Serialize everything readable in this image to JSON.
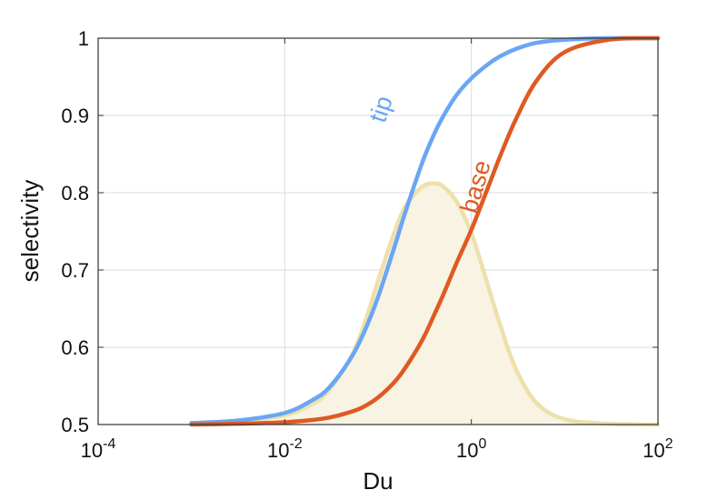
{
  "chart_data": {
    "type": "line",
    "xscale": "log",
    "xlabel": "Du",
    "ylabel": "selectivity",
    "xlim": [
      0.0001,
      100
    ],
    "ylim": [
      0.5,
      1
    ],
    "grid": true,
    "x_ticks": [
      {
        "base": "10",
        "exp": "-4"
      },
      {
        "base": "10",
        "exp": "-2"
      },
      {
        "base": "10",
        "exp": "0"
      },
      {
        "base": "10",
        "exp": "2"
      }
    ],
    "y_ticks": [
      "0.5",
      "0.6",
      "0.7",
      "0.8",
      "0.9",
      "1"
    ],
    "x": [
      0.001,
      0.003,
      0.01,
      0.02,
      0.03,
      0.05,
      0.07,
      0.1,
      0.15,
      0.2,
      0.3,
      0.4,
      0.5,
      0.7,
      1,
      1.5,
      2,
      3,
      5,
      10,
      30,
      100
    ],
    "series": [
      {
        "name": "tip",
        "color": "#6aa6f4",
        "values": [
          0.502,
          0.505,
          0.515,
          0.532,
          0.548,
          0.584,
          0.618,
          0.665,
          0.73,
          0.778,
          0.84,
          0.876,
          0.899,
          0.927,
          0.948,
          0.966,
          0.976,
          0.986,
          0.994,
          0.998,
          1.0,
          1.0
        ]
      },
      {
        "name": "base",
        "color": "#de5a22",
        "values": [
          0.5,
          0.501,
          0.503,
          0.506,
          0.509,
          0.516,
          0.523,
          0.535,
          0.555,
          0.575,
          0.61,
          0.642,
          0.668,
          0.71,
          0.752,
          0.806,
          0.845,
          0.895,
          0.945,
          0.982,
          0.998,
          1.0
        ]
      },
      {
        "name": "",
        "color": "#ede0ab",
        "fill": "#f8f3e2",
        "values": [
          0.501,
          0.504,
          0.512,
          0.527,
          0.545,
          0.585,
          0.627,
          0.686,
          0.749,
          0.784,
          0.808,
          0.812,
          0.808,
          0.788,
          0.748,
          0.681,
          0.632,
          0.572,
          0.528,
          0.507,
          0.501,
          0.5
        ]
      }
    ],
    "annotations": [
      {
        "text": "tip",
        "series": "tip"
      },
      {
        "text": "base",
        "series": "base"
      }
    ]
  }
}
